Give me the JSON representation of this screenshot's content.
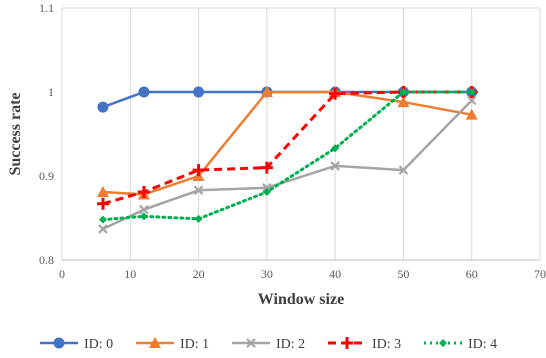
{
  "chart_data": {
    "type": "line",
    "title": "",
    "xlabel": "Window size",
    "ylabel": "Success rate",
    "xlim": [
      0,
      70
    ],
    "ylim": [
      0.8,
      1.1
    ],
    "x_ticks": [
      "0",
      "10",
      "20",
      "30",
      "40",
      "50",
      "60",
      "70"
    ],
    "y_ticks": [
      "0.8",
      "0.9",
      "1",
      "1.1"
    ],
    "grid": "vertical",
    "legend_position": "bottom",
    "series": [
      {
        "name": "ID: 0",
        "color": "#4472C4",
        "marker": "circle",
        "dash": "solid",
        "points": [
          [
            6,
            0.982
          ],
          [
            12,
            1.0
          ],
          [
            20,
            1.0
          ],
          [
            30,
            1.0
          ],
          [
            40,
            1.0
          ],
          [
            50,
            1.0
          ],
          [
            60,
            1.0
          ]
        ]
      },
      {
        "name": "ID: 1",
        "color": "#ED7D31",
        "marker": "triangle",
        "dash": "solid",
        "points": [
          [
            6,
            0.881
          ],
          [
            12,
            0.878
          ],
          [
            20,
            0.9
          ],
          [
            30,
            1.0
          ],
          [
            40,
            1.0
          ],
          [
            50,
            0.988
          ],
          [
            60,
            0.973
          ]
        ]
      },
      {
        "name": "ID: 2",
        "color": "#A5A5A5",
        "marker": "x",
        "dash": "solid",
        "points": [
          [
            6,
            0.837
          ],
          [
            12,
            0.86
          ],
          [
            20,
            0.883
          ],
          [
            30,
            0.886
          ],
          [
            40,
            0.912
          ],
          [
            50,
            0.907
          ],
          [
            60,
            0.99
          ]
        ]
      },
      {
        "name": "ID: 3",
        "color": "#FF0000",
        "marker": "plus",
        "dash": "dashed",
        "points": [
          [
            6,
            0.867
          ],
          [
            12,
            0.881
          ],
          [
            20,
            0.907
          ],
          [
            30,
            0.91
          ],
          [
            40,
            0.998
          ],
          [
            50,
            1.0
          ],
          [
            60,
            1.0
          ]
        ]
      },
      {
        "name": "ID: 4",
        "color": "#00B050",
        "marker": "diamond",
        "dash": "dotted",
        "points": [
          [
            6,
            0.848
          ],
          [
            12,
            0.852
          ],
          [
            20,
            0.849
          ],
          [
            30,
            0.881
          ],
          [
            40,
            0.933
          ],
          [
            50,
            1.0
          ],
          [
            60,
            1.0
          ]
        ]
      }
    ]
  }
}
